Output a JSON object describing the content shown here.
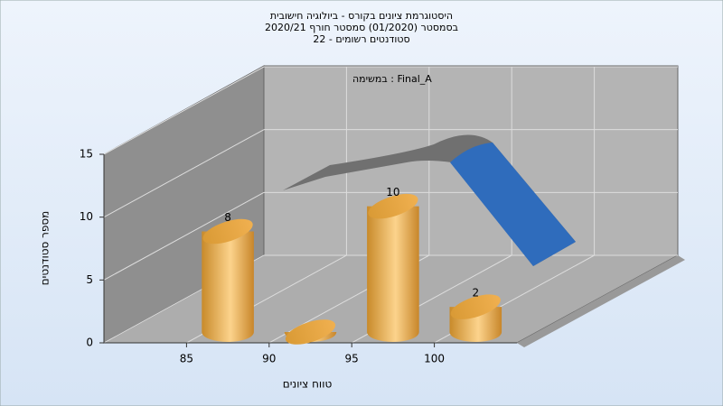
{
  "chart_data": {
    "type": "histogram",
    "title": [
      "היסטוגרמת ציונים בקורס - ביולוגיה חישובית",
      "בסמסטר  (01/2020)  סמסטר חורף 2020/21",
      "סטודנטים רשומים - 22"
    ],
    "annotation": "במשימה : Final_A",
    "x_label": "טווח ציונים",
    "y_label": "מספר סטודנטים",
    "bins": [
      85,
      90,
      95,
      100,
      105
    ],
    "values": [
      8,
      0,
      10,
      2
    ],
    "color": "#e0a040",
    "xlim": [
      80,
      105
    ],
    "xticks": [
      85,
      90,
      95,
      100
    ],
    "ylim": [
      0,
      15
    ],
    "yticks": [
      0,
      5,
      10,
      15
    ],
    "grid": true
  }
}
